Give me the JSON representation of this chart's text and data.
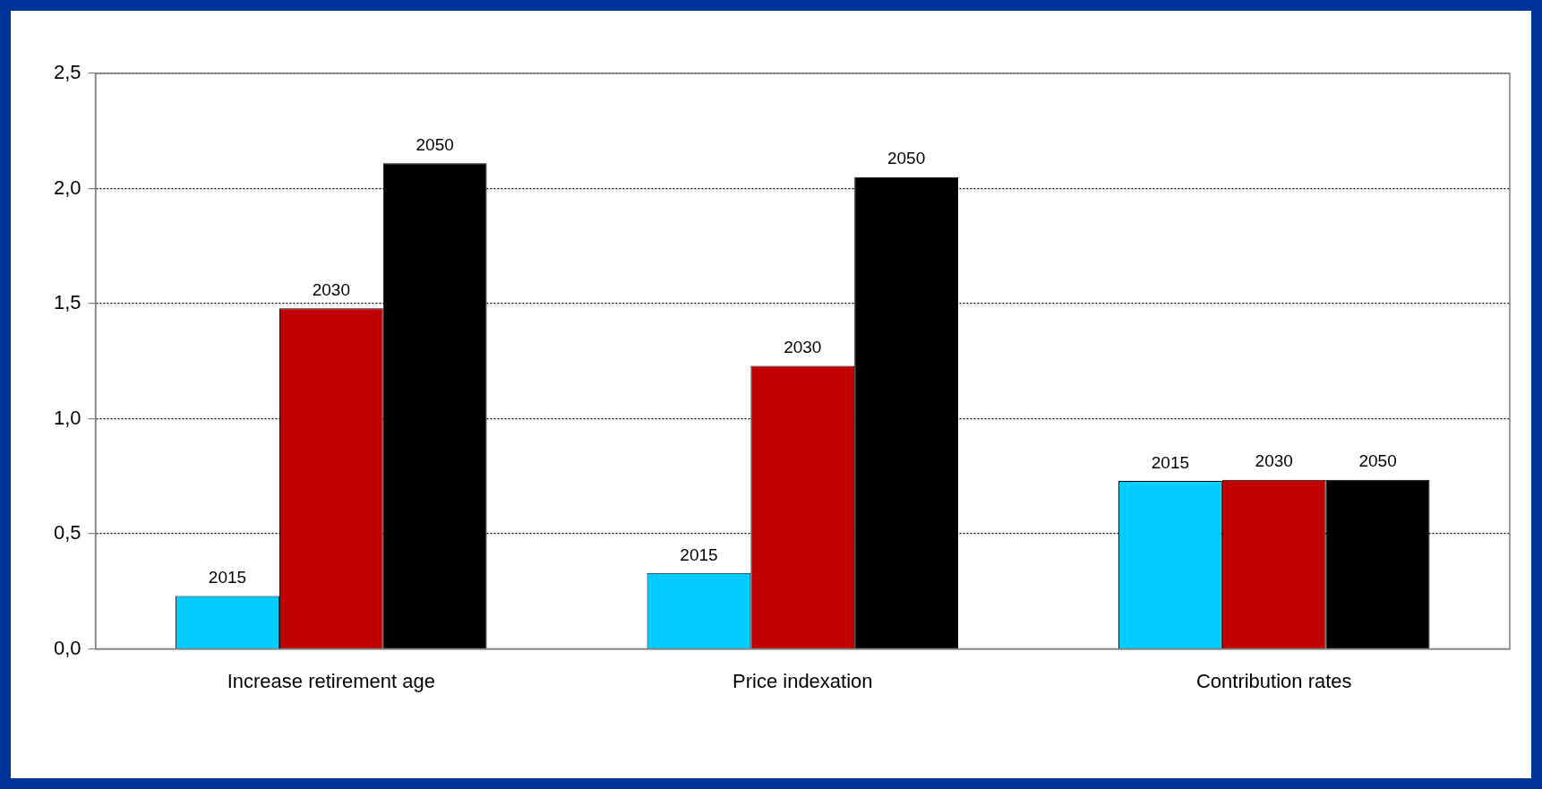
{
  "chart_data": {
    "type": "bar",
    "categories": [
      "Increase retirement age",
      "Price indexation",
      "Contribution rates"
    ],
    "series": [
      {
        "name": "2015",
        "color": "#00ccff",
        "values": [
          0.23,
          0.33,
          0.73
        ]
      },
      {
        "name": "2030",
        "color": "#c00000",
        "values": [
          1.48,
          1.23,
          0.735
        ]
      },
      {
        "name": "2050",
        "color": "#000000",
        "values": [
          2.11,
          2.05,
          0.735
        ]
      }
    ],
    "ylim": [
      0,
      2.5
    ],
    "yticks": [
      {
        "value": 0,
        "label": "0,0"
      },
      {
        "value": 0.5,
        "label": "0,5"
      },
      {
        "value": 1,
        "label": "1,0"
      },
      {
        "value": 1.5,
        "label": "1,5"
      },
      {
        "value": 2,
        "label": "2,0"
      },
      {
        "value": 2.5,
        "label": "2,5"
      }
    ],
    "grid": "y",
    "legend": false,
    "line_style": "dotted"
  }
}
